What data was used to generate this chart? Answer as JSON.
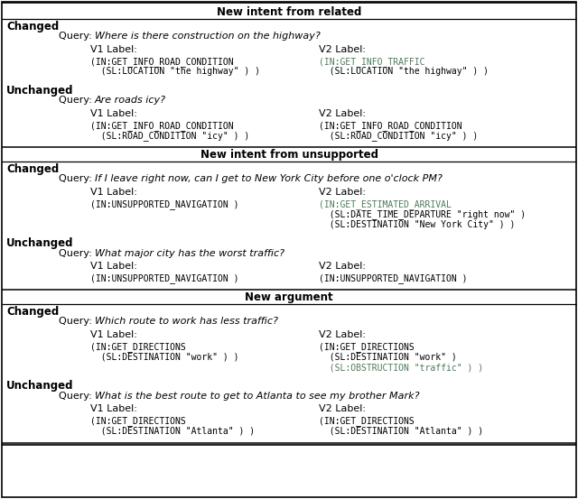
{
  "bg_color": "#ffffff",
  "text_color": "#000000",
  "green_color": "#4a7c59",
  "sections": [
    {
      "header": "New intent from related",
      "rows": [
        {
          "label": "Changed",
          "query": "Where is there construction on the highway?",
          "v1_lines": [
            {
              "text": "(IN:GET_INFO_ROAD_CONDITION",
              "green": false
            },
            {
              "text": "  (SL:LOCATION \"the highway\" ) )",
              "green": false
            }
          ],
          "v2_lines": [
            {
              "text": "(IN:GET_INFO_TRAFFIC",
              "green": true
            },
            {
              "text": "  (SL:LOCATION \"the highway\" ) )",
              "green": false
            }
          ]
        },
        {
          "label": "Unchanged",
          "query": "Are roads icy?",
          "v1_lines": [
            {
              "text": "(IN:GET_INFO_ROAD_CONDITION",
              "green": false
            },
            {
              "text": "  (SL:ROAD_CONDITION \"icy\" ) )",
              "green": false
            }
          ],
          "v2_lines": [
            {
              "text": "(IN:GET_INFO_ROAD_CONDITION",
              "green": false
            },
            {
              "text": "  (SL:ROAD_CONDITION \"icy\" ) )",
              "green": false
            }
          ]
        }
      ]
    },
    {
      "header": "New intent from unsupported",
      "rows": [
        {
          "label": "Changed",
          "query": "If I leave right now, can I get to New York City before one o'clock PM?",
          "v1_lines": [
            {
              "text": "(IN:UNSUPPORTED_NAVIGATION )",
              "green": false
            }
          ],
          "v2_lines": [
            {
              "text": "(IN:GET_ESTIMATED_ARRIVAL",
              "green": true
            },
            {
              "text": "  (SL:DATE_TIME_DEPARTURE \"right now\" )",
              "green": false
            },
            {
              "text": "  (SL:DESTINATION \"New York City\" ) )",
              "green": false
            }
          ]
        },
        {
          "label": "Unchanged",
          "query": "What major city has the worst traffic?",
          "v1_lines": [
            {
              "text": "(IN:UNSUPPORTED_NAVIGATION )",
              "green": false
            }
          ],
          "v2_lines": [
            {
              "text": "(IN:UNSUPPORTED_NAVIGATION )",
              "green": false
            }
          ]
        }
      ]
    },
    {
      "header": "New argument",
      "rows": [
        {
          "label": "Changed",
          "query": "Which route to work has less traffic?",
          "v1_lines": [
            {
              "text": "(IN:GET_DIRECTIONS",
              "green": false
            },
            {
              "text": "  (SL:DESTINATION \"work\" ) )",
              "green": false
            }
          ],
          "v2_lines": [
            {
              "text": "(IN:GET_DIRECTIONS",
              "green": false
            },
            {
              "text": "  (SL:DESTINATION \"work\" )",
              "green": false
            },
            {
              "text": "  (SL:OBSTRUCTION \"traffic\" ) )",
              "green": true
            }
          ]
        },
        {
          "label": "Unchanged",
          "query": "What is the best route to get to Atlanta to see my brother Mark?",
          "v1_lines": [
            {
              "text": "(IN:GET_DIRECTIONS",
              "green": false
            },
            {
              "text": "  (SL:DESTINATION \"Atlanta\" ) )",
              "green": false
            }
          ],
          "v2_lines": [
            {
              "text": "(IN:GET_DIRECTIONS",
              "green": false
            },
            {
              "text": "  (SL:DESTINATION \"Atlanta\" ) )",
              "green": false
            }
          ]
        }
      ]
    }
  ]
}
